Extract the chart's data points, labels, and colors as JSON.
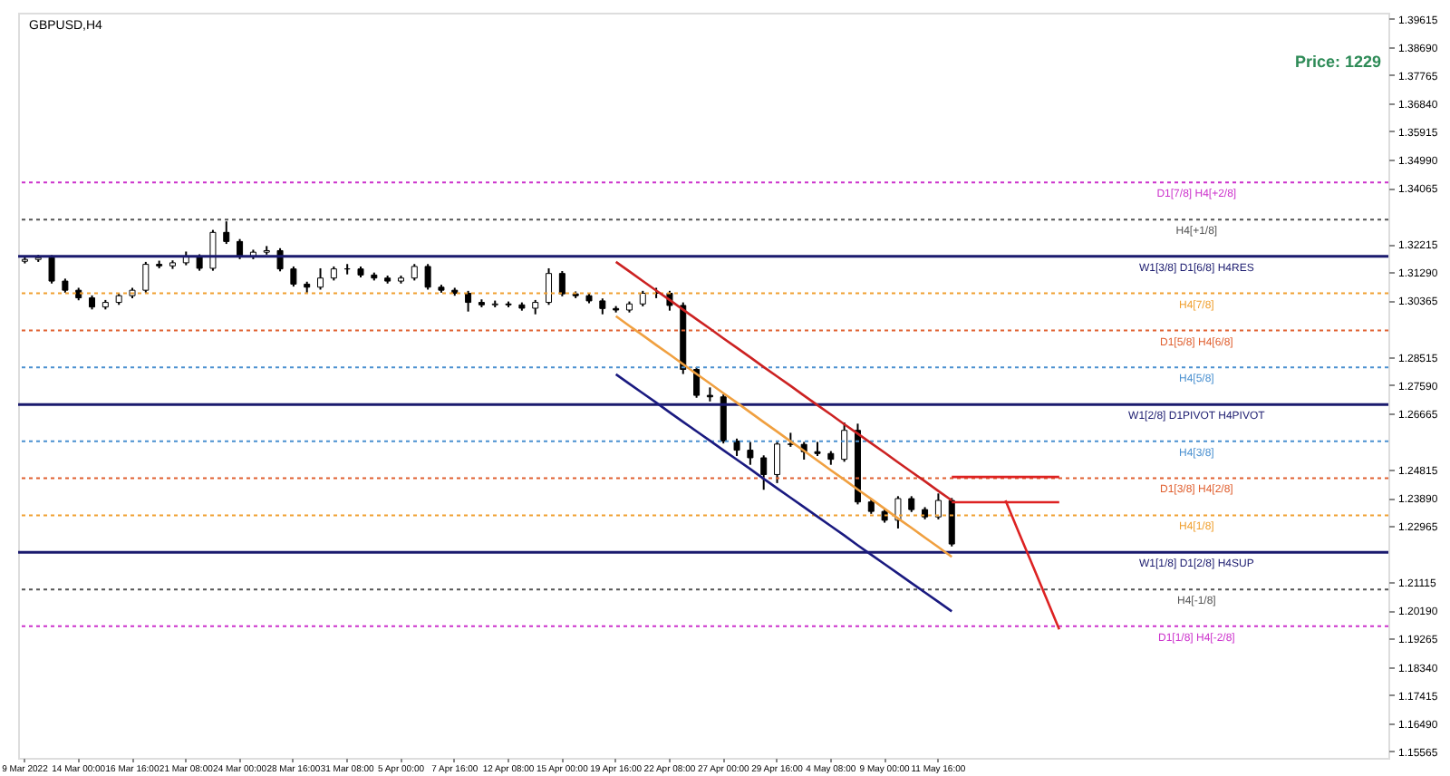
{
  "chart_data": {
    "type": "candlestick",
    "title": "GBPUSD,H4",
    "annotations": [
      "Price: 1229"
    ],
    "categories": [
      "9 Mar 2022",
      null,
      null,
      null,
      "14 Mar 00:00",
      null,
      null,
      null,
      "16 Mar 16:00",
      null,
      null,
      null,
      "21 Mar 08:00",
      null,
      null,
      null,
      "24 Mar 00:00",
      null,
      null,
      null,
      "28 Mar 16:00",
      null,
      null,
      null,
      "31 Mar 08:00",
      null,
      null,
      null,
      "5 Apr 00:00",
      null,
      null,
      null,
      "7 Apr 16:00",
      null,
      null,
      null,
      "12 Apr 08:00",
      null,
      null,
      null,
      "15 Apr 00:00",
      null,
      null,
      null,
      "19 Apr 16:00",
      null,
      null,
      null,
      "22 Apr 08:00",
      null,
      null,
      null,
      "27 Apr 00:00",
      null,
      null,
      null,
      "29 Apr 16:00",
      null,
      null,
      null,
      "4 May 08:00",
      null,
      null,
      null,
      "9 May 00:00",
      null,
      null,
      null,
      "11 May 16:00",
      null,
      null,
      null,
      null,
      null,
      null,
      null,
      null,
      null,
      null,
      null,
      null,
      null,
      null,
      null,
      null,
      null,
      null,
      null,
      null,
      null,
      null,
      null,
      null,
      null,
      null,
      null,
      null,
      null,
      null,
      null,
      null,
      null
    ],
    "ohlc": [
      [
        1.3165,
        1.318,
        1.3158,
        1.3171
      ],
      [
        1.3171,
        1.3186,
        1.3163,
        1.3177
      ],
      [
        1.3177,
        1.3185,
        1.3092,
        1.31
      ],
      [
        1.31,
        1.3108,
        1.3062,
        1.307
      ],
      [
        1.307,
        1.3078,
        1.3037,
        1.3045
      ],
      [
        1.3045,
        1.3053,
        1.3007,
        1.3015
      ],
      [
        1.3015,
        1.3038,
        1.3007,
        1.303
      ],
      [
        1.303,
        1.306,
        1.3022,
        1.3052
      ],
      [
        1.3052,
        1.3078,
        1.3044,
        1.307
      ],
      [
        1.307,
        1.3163,
        1.3062,
        1.3155
      ],
      [
        1.3155,
        1.3167,
        1.3142,
        1.315
      ],
      [
        1.315,
        1.3168,
        1.314,
        1.316
      ],
      [
        1.316,
        1.3197,
        1.3152,
        1.318
      ],
      [
        1.318,
        1.3188,
        1.3134,
        1.3142
      ],
      [
        1.3142,
        1.3268,
        1.3134,
        1.326
      ],
      [
        1.326,
        1.3296,
        1.3222,
        1.323
      ],
      [
        1.323,
        1.3238,
        1.3172,
        1.318
      ],
      [
        1.318,
        1.3203,
        1.3172,
        1.3195
      ],
      [
        1.3195,
        1.3215,
        1.3187,
        1.32
      ],
      [
        1.32,
        1.3208,
        1.3132,
        1.314
      ],
      [
        1.314,
        1.3148,
        1.3082,
        1.309
      ],
      [
        1.309,
        1.3098,
        1.3062,
        1.308
      ],
      [
        1.308,
        1.3142,
        1.3072,
        1.311
      ],
      [
        1.311,
        1.3148,
        1.3102,
        1.314
      ],
      [
        1.314,
        1.3156,
        1.3122,
        1.314
      ],
      [
        1.314,
        1.3148,
        1.3112,
        1.312
      ],
      [
        1.312,
        1.3128,
        1.3102,
        1.311
      ],
      [
        1.311,
        1.3118,
        1.3092,
        1.31
      ],
      [
        1.31,
        1.3118,
        1.3092,
        1.311
      ],
      [
        1.311,
        1.3156,
        1.3102,
        1.3148
      ],
      [
        1.3148,
        1.3156,
        1.3072,
        1.308
      ],
      [
        1.308,
        1.3088,
        1.3062,
        1.307
      ],
      [
        1.307,
        1.3078,
        1.3052,
        1.306
      ],
      [
        1.306,
        1.3068,
        1.3,
        1.303
      ],
      [
        1.303,
        1.304,
        1.3014,
        1.3022
      ],
      [
        1.3022,
        1.3036,
        1.3014,
        1.3025
      ],
      [
        1.3025,
        1.3033,
        1.3014,
        1.3022
      ],
      [
        1.3022,
        1.303,
        1.3003,
        1.3011
      ],
      [
        1.3011,
        1.3038,
        1.2991,
        1.303
      ],
      [
        1.303,
        1.3142,
        1.3022,
        1.3125
      ],
      [
        1.3125,
        1.3133,
        1.305,
        1.3058
      ],
      [
        1.3058,
        1.3066,
        1.3044,
        1.3052
      ],
      [
        1.3052,
        1.306,
        1.3027,
        1.3035
      ],
      [
        1.3035,
        1.3043,
        1.2991,
        1.301
      ],
      [
        1.301,
        1.3018,
        1.2997,
        1.3005
      ],
      [
        1.3005,
        1.3033,
        1.2997,
        1.3025
      ],
      [
        1.3025,
        1.3068,
        1.3017,
        1.306
      ],
      [
        1.306,
        1.3078,
        1.3044,
        1.306
      ],
      [
        1.306,
        1.3068,
        1.3003,
        1.302
      ],
      [
        1.302,
        1.303,
        1.2795,
        1.281
      ],
      [
        1.281,
        1.2818,
        1.2717,
        1.2725
      ],
      [
        1.2725,
        1.2751,
        1.2705,
        1.272
      ],
      [
        1.272,
        1.2728,
        1.2567,
        1.2575
      ],
      [
        1.2575,
        1.2583,
        1.2526,
        1.2545
      ],
      [
        1.2545,
        1.2572,
        1.2497,
        1.252
      ],
      [
        1.252,
        1.2528,
        1.2415,
        1.2465
      ],
      [
        1.2465,
        1.2573,
        1.2437,
        1.2565
      ],
      [
        1.2565,
        1.2602,
        1.2556,
        1.2564
      ],
      [
        1.2564,
        1.2572,
        1.2514,
        1.254
      ],
      [
        1.254,
        1.2572,
        1.2526,
        1.2534
      ],
      [
        1.2534,
        1.2542,
        1.2497,
        1.2515
      ],
      [
        1.2515,
        1.2636,
        1.2507,
        1.261
      ],
      [
        1.261,
        1.2632,
        1.2367,
        1.2375
      ],
      [
        1.2375,
        1.2383,
        1.2336,
        1.2344
      ],
      [
        1.2344,
        1.2352,
        1.2307,
        1.2315
      ],
      [
        1.2315,
        1.2394,
        1.2288,
        1.2386
      ],
      [
        1.2386,
        1.2394,
        1.2342,
        1.235
      ],
      [
        1.235,
        1.2358,
        1.2318,
        1.2326
      ],
      [
        1.2326,
        1.2403,
        1.2318,
        1.238
      ],
      [
        1.238,
        1.2388,
        1.2229,
        1.2237
      ],
      null,
      null,
      null,
      null,
      null,
      null,
      null,
      null,
      null,
      null,
      null,
      null,
      null,
      null,
      null,
      null,
      null,
      null,
      null,
      null,
      null,
      null,
      null,
      null,
      null,
      null,
      null,
      null,
      null,
      null,
      null,
      null
    ],
    "series": [
      {
        "type": "line",
        "color": "#cc2222",
        "values": [
          null,
          null,
          null,
          null,
          null,
          null,
          null,
          null,
          null,
          null,
          null,
          null,
          null,
          null,
          null,
          null,
          null,
          null,
          null,
          null,
          null,
          null,
          null,
          null,
          null,
          null,
          null,
          null,
          null,
          null,
          null,
          null,
          null,
          null,
          null,
          null,
          null,
          null,
          null,
          null,
          null,
          null,
          null,
          null,
          1.3163,
          1.3132,
          1.31,
          1.3069,
          1.3038,
          1.3006,
          1.2975,
          1.2944,
          1.2912,
          1.2881,
          1.285,
          1.2818,
          1.2787,
          1.2756,
          1.2724,
          1.2693,
          1.2662,
          1.263,
          1.2599,
          1.2568,
          1.2537,
          1.2505,
          1.2474,
          1.2443,
          1.2411,
          1.238,
          null,
          null,
          null,
          null,
          null,
          null,
          null,
          null,
          null,
          null,
          null,
          null,
          null,
          null,
          null,
          null,
          null,
          null,
          null,
          null,
          null,
          null,
          null,
          null,
          null,
          null,
          null,
          null,
          null,
          null,
          null,
          null
        ]
      },
      {
        "type": "line",
        "color": "#f0a040",
        "values": [
          null,
          null,
          null,
          null,
          null,
          null,
          null,
          null,
          null,
          null,
          null,
          null,
          null,
          null,
          null,
          null,
          null,
          null,
          null,
          null,
          null,
          null,
          null,
          null,
          null,
          null,
          null,
          null,
          null,
          null,
          null,
          null,
          null,
          null,
          null,
          null,
          null,
          null,
          null,
          null,
          null,
          null,
          null,
          null,
          1.2985,
          1.2953,
          1.2922,
          1.289,
          1.2859,
          1.2827,
          1.2795,
          1.2764,
          1.2732,
          1.2701,
          1.2669,
          1.2637,
          1.2606,
          1.2574,
          1.2543,
          1.2511,
          1.2479,
          1.2448,
          1.2416,
          1.2385,
          1.2353,
          1.2321,
          1.229,
          1.2258,
          1.2227,
          1.2195,
          null,
          null,
          null,
          null,
          null,
          null,
          null,
          null,
          null,
          null,
          null,
          null,
          null,
          null,
          null,
          null,
          null,
          null,
          null,
          null,
          null,
          null,
          null,
          null,
          null,
          null,
          null,
          null,
          null,
          null,
          null,
          null
        ]
      },
      {
        "type": "line",
        "color": "#1a1a80",
        "values": [
          null,
          null,
          null,
          null,
          null,
          null,
          null,
          null,
          null,
          null,
          null,
          null,
          null,
          null,
          null,
          null,
          null,
          null,
          null,
          null,
          null,
          null,
          null,
          null,
          null,
          null,
          null,
          null,
          null,
          null,
          null,
          null,
          null,
          null,
          null,
          null,
          null,
          null,
          null,
          null,
          null,
          null,
          null,
          null,
          1.2794,
          1.2763,
          1.2732,
          1.2701,
          1.2669,
          1.2638,
          1.2607,
          1.2576,
          1.2545,
          1.2514,
          1.2483,
          1.2451,
          1.242,
          1.2389,
          1.2358,
          1.2327,
          1.2296,
          1.2265,
          1.2233,
          1.2202,
          1.2171,
          1.214,
          1.2109,
          1.2078,
          1.2047,
          1.2016,
          null,
          null,
          null,
          null,
          null,
          null,
          null,
          null,
          null,
          null,
          null,
          null,
          null,
          null,
          null,
          null,
          null,
          null,
          null,
          null,
          null,
          null,
          null,
          null,
          null,
          null,
          null,
          null,
          null,
          null,
          null,
          null
        ]
      },
      {
        "type": "line",
        "color": "#dd2222",
        "values": [
          null,
          null,
          null,
          null,
          null,
          null,
          null,
          null,
          null,
          null,
          null,
          null,
          null,
          null,
          null,
          null,
          null,
          null,
          null,
          null,
          null,
          null,
          null,
          null,
          null,
          null,
          null,
          null,
          null,
          null,
          null,
          null,
          null,
          null,
          null,
          null,
          null,
          null,
          null,
          null,
          null,
          null,
          null,
          null,
          null,
          null,
          null,
          null,
          null,
          null,
          null,
          null,
          null,
          null,
          null,
          null,
          null,
          null,
          null,
          null,
          null,
          null,
          null,
          null,
          null,
          null,
          null,
          null,
          null,
          null,
          null,
          null,
          null,
          1.238,
          1.2274,
          1.2169,
          1.2063,
          1.1957,
          null,
          null,
          null,
          null,
          null,
          null,
          null,
          null,
          null,
          null,
          null,
          null,
          null,
          null,
          null,
          null,
          null,
          null,
          null,
          null,
          null,
          null,
          null,
          null
        ]
      },
      {
        "type": "line",
        "color": "#dd2222",
        "values": [
          null,
          null,
          null,
          null,
          null,
          null,
          null,
          null,
          null,
          null,
          null,
          null,
          null,
          null,
          null,
          null,
          null,
          null,
          null,
          null,
          null,
          null,
          null,
          null,
          null,
          null,
          null,
          null,
          null,
          null,
          null,
          null,
          null,
          null,
          null,
          null,
          null,
          null,
          null,
          null,
          null,
          null,
          null,
          null,
          null,
          null,
          null,
          null,
          null,
          null,
          null,
          null,
          null,
          null,
          null,
          null,
          null,
          null,
          null,
          null,
          null,
          null,
          null,
          null,
          null,
          null,
          null,
          null,
          null,
          1.2457,
          1.2457,
          1.2457,
          1.2457,
          1.2457,
          1.2457,
          1.2457,
          1.2457,
          1.2457,
          null,
          null,
          null,
          null,
          null,
          null,
          null,
          null,
          null,
          null,
          null,
          null,
          null,
          null,
          null,
          null,
          null,
          null,
          null,
          null,
          null,
          null,
          null,
          null
        ]
      },
      {
        "type": "line",
        "color": "#dd2222",
        "values": [
          null,
          null,
          null,
          null,
          null,
          null,
          null,
          null,
          null,
          null,
          null,
          null,
          null,
          null,
          null,
          null,
          null,
          null,
          null,
          null,
          null,
          null,
          null,
          null,
          null,
          null,
          null,
          null,
          null,
          null,
          null,
          null,
          null,
          null,
          null,
          null,
          null,
          null,
          null,
          null,
          null,
          null,
          null,
          null,
          null,
          null,
          null,
          null,
          null,
          null,
          null,
          null,
          null,
          null,
          null,
          null,
          null,
          null,
          null,
          null,
          null,
          null,
          null,
          null,
          null,
          null,
          null,
          null,
          null,
          1.2374,
          1.2374,
          1.2374,
          1.2374,
          1.2374,
          1.2374,
          1.2374,
          1.2374,
          1.2374,
          null,
          null,
          null,
          null,
          null,
          null,
          null,
          null,
          null,
          null,
          null,
          null,
          null,
          null,
          null,
          null,
          null,
          null,
          null,
          null,
          null,
          null,
          null,
          null
        ]
      }
    ],
    "ref_lines": [
      {
        "axis": "y",
        "value": 1.3424,
        "label": "D1[7/8] H4[+2/8]",
        "color": "#cc33cc",
        "line_style": "dotted"
      },
      {
        "axis": "y",
        "value": 1.3302,
        "label": "H4[+1/8]",
        "color": "#555555",
        "line_style": "dotted"
      },
      {
        "axis": "y",
        "value": 1.3181,
        "label": "W1[3/8] D1[6/8] H4RES",
        "color": "#1a1a6e",
        "line_style": "solid"
      },
      {
        "axis": "y",
        "value": 1.306,
        "label": "H4[7/8]",
        "color": "#f0a030",
        "line_style": "dotted"
      },
      {
        "axis": "y",
        "value": 1.2938,
        "label": "D1[5/8] H4[6/8]",
        "color": "#e06030",
        "line_style": "dotted"
      },
      {
        "axis": "y",
        "value": 1.2817,
        "label": "H4[5/8]",
        "color": "#4a90d0",
        "line_style": "dotted"
      },
      {
        "axis": "y",
        "value": 1.2695,
        "label": "W1[2/8] D1PIVOT H4PIVOT",
        "color": "#1a1a6e",
        "line_style": "solid"
      },
      {
        "axis": "y",
        "value": 1.2574,
        "label": "H4[3/8]",
        "color": "#4a90d0",
        "line_style": "dotted"
      },
      {
        "axis": "y",
        "value": 1.2453,
        "label": "D1[3/8] H4[2/8]",
        "color": "#e06030",
        "line_style": "dotted"
      },
      {
        "axis": "y",
        "value": 1.2331,
        "label": "H4[1/8]",
        "color": "#f0a030",
        "line_style": "dotted"
      },
      {
        "axis": "y",
        "value": 1.221,
        "label": "W1[1/8] D1[2/8] H4SUP",
        "color": "#1a1a6e",
        "line_style": "solid"
      },
      {
        "axis": "y",
        "value": 1.2088,
        "label": "H4[-1/8]",
        "color": "#555555",
        "line_style": "dotted"
      },
      {
        "axis": "y",
        "value": 1.1967,
        "label": "D1[1/8] H4[-2/8]",
        "color": "#cc33cc",
        "line_style": "dotted"
      }
    ],
    "ylim": [
      1.1535,
      1.3981
    ],
    "yticks": [
      1.15565,
      {
        "value": 1.1649,
        "label": "1.16490"
      },
      1.17415,
      {
        "value": 1.1834,
        "label": "1.18340"
      },
      1.19265,
      {
        "value": 1.2019,
        "label": "1.20190"
      },
      1.21115,
      1.22965,
      {
        "value": 1.2389,
        "label": "1.23890"
      },
      1.24815,
      1.26665,
      {
        "value": 1.2759,
        "label": "1.27590"
      },
      1.28515,
      1.30365,
      {
        "value": 1.3129,
        "label": "1.31290"
      },
      1.32215,
      1.34065,
      {
        "value": 1.3499,
        "label": "1.34990"
      },
      1.35915,
      {
        "value": 1.3684,
        "label": "1.36840"
      },
      1.37765,
      {
        "value": 1.3869,
        "label": "1.38690"
      },
      1.39615
    ]
  }
}
